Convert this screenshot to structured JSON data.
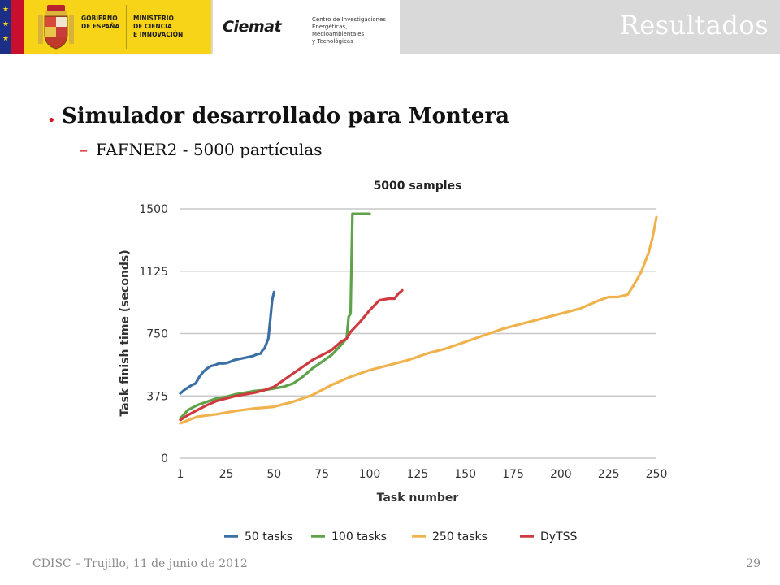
{
  "header": {
    "gobierno": "GOBIERNO\nDE ESPAÑA",
    "ministerio": "MINISTERIO\nDE CIENCIA\nE INNOVACIÓN",
    "ciemat_logo": "Ciemat",
    "ciemat_desc": "Centro de Investigaciones\nEnergéticas, Medioambientales\ny Tecnológicas",
    "title": "Resultados"
  },
  "content": {
    "bullet": "Simulador desarrollado para Montera",
    "sub_bullet": "FAFNER2 - 5000 partículas"
  },
  "footer": {
    "left": "CDISC – Trujillo, 11 de junio de 2012",
    "page": "29"
  },
  "chart_data": {
    "type": "line",
    "title": "5000 samples",
    "xlabel": "Task number",
    "ylabel": "Task finish time (seconds)",
    "xlim": [
      1,
      250
    ],
    "ylim": [
      0,
      1500
    ],
    "xticks": [
      "1",
      "25",
      "50",
      "75",
      "100",
      "125",
      "150",
      "175",
      "200",
      "225",
      "250"
    ],
    "yticks": [
      "0",
      "375",
      "750",
      "1125",
      "1500"
    ],
    "grid": "horizontal",
    "legend_position": "bottom",
    "series": [
      {
        "name": "50 tasks",
        "color": "#3a6ea5",
        "x": [
          1,
          3,
          5,
          7,
          9,
          11,
          13,
          15,
          17,
          19,
          21,
          23,
          25,
          27,
          29,
          31,
          33,
          35,
          37,
          39,
          41,
          43,
          44,
          45,
          46,
          47,
          48,
          49,
          50
        ],
        "y": [
          390,
          410,
          425,
          440,
          450,
          490,
          520,
          540,
          555,
          560,
          570,
          570,
          572,
          580,
          590,
          595,
          600,
          605,
          610,
          615,
          625,
          630,
          650,
          660,
          690,
          720,
          830,
          950,
          1000
        ]
      },
      {
        "name": "100 tasks",
        "color": "#5ea24a",
        "x": [
          1,
          5,
          10,
          15,
          20,
          25,
          30,
          35,
          40,
          45,
          50,
          55,
          60,
          65,
          70,
          75,
          80,
          85,
          88,
          89,
          90,
          91,
          92,
          95,
          98,
          100
        ],
        "y": [
          240,
          290,
          320,
          340,
          360,
          370,
          385,
          395,
          405,
          410,
          420,
          430,
          450,
          490,
          540,
          580,
          620,
          680,
          720,
          850,
          870,
          1470,
          1470,
          1470,
          1470,
          1470
        ]
      },
      {
        "name": "250 tasks",
        "color": "#f0b24c",
        "x": [
          1,
          10,
          20,
          30,
          40,
          50,
          60,
          70,
          80,
          90,
          100,
          110,
          120,
          130,
          140,
          150,
          160,
          170,
          180,
          190,
          200,
          210,
          220,
          225,
          230,
          235,
          238,
          240,
          242,
          244,
          246,
          248,
          250
        ],
        "y": [
          210,
          250,
          265,
          285,
          300,
          310,
          340,
          380,
          440,
          490,
          530,
          560,
          590,
          630,
          660,
          700,
          740,
          780,
          810,
          840,
          870,
          900,
          950,
          970,
          970,
          985,
          1040,
          1080,
          1120,
          1180,
          1240,
          1330,
          1450
        ]
      },
      {
        "name": "DyTSS",
        "color": "#cf3a3e",
        "x": [
          1,
          5,
          10,
          15,
          20,
          25,
          30,
          35,
          40,
          45,
          50,
          55,
          60,
          65,
          70,
          75,
          80,
          85,
          88,
          90,
          95,
          100,
          105,
          110,
          113,
          115,
          117
        ],
        "y": [
          230,
          260,
          290,
          320,
          345,
          360,
          375,
          385,
          395,
          410,
          430,
          470,
          510,
          550,
          590,
          620,
          650,
          700,
          720,
          760,
          820,
          890,
          950,
          960,
          960,
          990,
          1010
        ]
      }
    ]
  }
}
